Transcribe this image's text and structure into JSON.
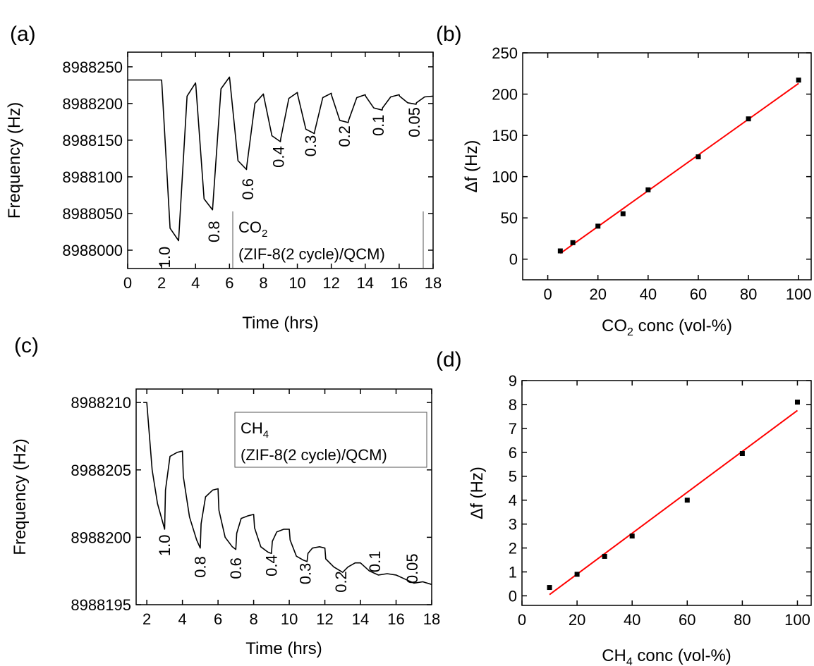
{
  "chart_data": [
    {
      "panel_label": "(a)",
      "type": "line",
      "xlabel": "Time (hrs)",
      "ylabel": "Frequency (Hz)",
      "xlim": [
        0,
        18
      ],
      "ylim": [
        8987975,
        8988270
      ],
      "xticks": [
        0,
        2,
        4,
        6,
        8,
        10,
        12,
        14,
        16,
        18
      ],
      "yticks": [
        8988000,
        8988050,
        8988100,
        8988150,
        8988200,
        8988250
      ],
      "legend": [
        "CO",
        "2",
        "(ZIF-8(2 cycle)/QCM)"
      ],
      "annotations": [
        {
          "text": "1.0",
          "x": 2.5,
          "y": 8988005
        },
        {
          "text": "0.8",
          "x": 5.4,
          "y": 8988040
        },
        {
          "text": "0.6",
          "x": 7.4,
          "y": 8988098
        },
        {
          "text": "0.4",
          "x": 9.2,
          "y": 8988142
        },
        {
          "text": "0.3",
          "x": 11.1,
          "y": 8988157
        },
        {
          "text": "0.2",
          "x": 13.1,
          "y": 8988170
        },
        {
          "text": "0.1",
          "x": 15.1,
          "y": 8988185
        },
        {
          "text": "0.05",
          "x": 17.2,
          "y": 8988195
        }
      ],
      "series": [
        {
          "x": [
            0,
            2,
            2.02,
            2.5,
            3,
            3.02,
            3.5,
            4,
            4.02,
            4.5,
            5,
            5.02,
            5.5,
            6,
            6.02,
            6.5,
            7,
            7.02,
            7.5,
            8,
            8.02,
            8.5,
            9,
            9.02,
            9.5,
            10,
            10.02,
            10.5,
            11,
            11.02,
            11.5,
            12,
            12.02,
            12.5,
            13,
            13.02,
            13.5,
            14,
            14.02,
            14.5,
            15,
            15.02,
            15.5,
            16,
            16.02,
            16.5,
            17,
            17.02,
            17.5,
            18
          ],
          "y": [
            8988232,
            8988232,
            8988225,
            8988030,
            8988013,
            8988020,
            8988210,
            8988228,
            8988224,
            8988070,
            8988055,
            8988062,
            8988220,
            8988236,
            8988232,
            8988122,
            8988110,
            8988115,
            8988200,
            8988213,
            8988210,
            8988156,
            8988148,
            8988152,
            8988207,
            8988215,
            8988212,
            8988165,
            8988159,
            8988162,
            8988208,
            8988214,
            8988211,
            8988177,
            8988174,
            8988177,
            8988208,
            8988212,
            8988210,
            8988194,
            8988191,
            8988194,
            8988209,
            8988212,
            8988210,
            8988201,
            8988199,
            8988201,
            8988209,
            8988210
          ]
        }
      ]
    },
    {
      "panel_label": "(b)",
      "type": "scatter",
      "xlabel": "CO conc (vol-%)",
      "xlabel_parts": [
        "CO",
        "2",
        " conc (vol-%)"
      ],
      "ylabel": "Δf (Hz)",
      "xlim": [
        -10,
        105
      ],
      "ylim": [
        -25,
        250
      ],
      "xticks": [
        0,
        20,
        40,
        60,
        80,
        100
      ],
      "yticks": [
        0,
        50,
        100,
        150,
        200,
        250
      ],
      "series": [
        {
          "x": [
            5,
            10,
            20,
            30,
            40,
            60,
            80,
            100
          ],
          "y": [
            10,
            20,
            40,
            55,
            84,
            124,
            170,
            217
          ]
        }
      ],
      "fit": {
        "x": [
          5,
          100
        ],
        "y": [
          7,
          213
        ]
      }
    },
    {
      "panel_label": "(c)",
      "type": "line",
      "xlabel": "Time (hrs)",
      "ylabel": "Frequency (Hz)",
      "xlim": [
        1.4,
        18
      ],
      "ylim": [
        8988195,
        8988211
      ],
      "xticks": [
        2,
        4,
        6,
        8,
        10,
        12,
        14,
        16,
        18
      ],
      "yticks": [
        8988195,
        8988200,
        8988205,
        8988210
      ],
      "legend": [
        "CH",
        "4",
        "(ZIF-8(2 cycle)/QCM)"
      ],
      "annotations": [
        {
          "text": "1.0",
          "x": 3.3,
          "y": 8988200.2
        },
        {
          "text": "0.8",
          "x": 5.3,
          "y": 8988198.6
        },
        {
          "text": "0.6",
          "x": 7.3,
          "y": 8988198.5
        },
        {
          "text": "0.4",
          "x": 9.3,
          "y": 8988198.7
        },
        {
          "text": "0.3",
          "x": 11.2,
          "y": 8988198.1
        },
        {
          "text": "0.2",
          "x": 13.2,
          "y": 8988197.5
        },
        {
          "text": "0.1",
          "x": 15.1,
          "y": 8988199
        },
        {
          "text": "0.05",
          "x": 17.2,
          "y": 8988198.8
        }
      ],
      "series": [
        {
          "x": [
            1.8,
            2,
            2.3,
            2.6,
            3,
            3.05,
            3.3,
            3.7,
            4,
            4.05,
            4.4,
            4.8,
            5,
            5.05,
            5.3,
            5.7,
            6,
            6.05,
            6.4,
            6.8,
            7,
            7.05,
            7.3,
            7.7,
            8,
            8.05,
            8.4,
            8.8,
            9,
            9.05,
            9.3,
            9.7,
            10,
            10.05,
            10.4,
            10.8,
            11,
            11.05,
            11.3,
            11.7,
            12,
            12.05,
            12.5,
            13,
            13.3,
            13.7,
            14,
            14.5,
            15,
            15.5,
            16,
            16.5,
            17,
            17.5,
            18
          ],
          "y": [
            8988210,
            8988210,
            8988205,
            8988202.5,
            8988200.6,
            8988203.5,
            8988206,
            8988206.3,
            8988206.4,
            8988204.5,
            8988201.5,
            8988199.8,
            8988199.2,
            8988201,
            8988203,
            8988203.5,
            8988203.6,
            8988202,
            8988200,
            8988199.3,
            8988199.1,
            8988200.3,
            8988201.4,
            8988201.6,
            8988201.7,
            8988200.7,
            8988199.3,
            8988198.9,
            8988198.8,
            8988199.7,
            8988200.4,
            8988200.6,
            8988200.6,
            8988199.8,
            8988198.6,
            8988198.3,
            8988198.2,
            8988198.8,
            8988199.2,
            8988199.3,
            8988199.2,
            8988198.4,
            8988197.8,
            8988197.4,
            8988197.8,
            8988198.1,
            8988198.1,
            8988197.5,
            8988197.2,
            8988197.3,
            8988197.2,
            8988196.9,
            8988196.6,
            8988196.7,
            8988196.5
          ]
        }
      ]
    },
    {
      "panel_label": "(d)",
      "type": "scatter",
      "xlabel": "CH conc (vol-%)",
      "xlabel_parts": [
        "CH",
        "4",
        " conc (vol-%)"
      ],
      "ylabel": "Δf (Hz)",
      "xlim": [
        0,
        105
      ],
      "ylim": [
        -0.4,
        9
      ],
      "xticks": [
        0,
        20,
        40,
        60,
        80,
        100
      ],
      "yticks": [
        0,
        1,
        2,
        3,
        4,
        5,
        6,
        7,
        8,
        9
      ],
      "series": [
        {
          "x": [
            10,
            20,
            30,
            40,
            60,
            80,
            100
          ],
          "y": [
            0.35,
            0.9,
            1.65,
            2.5,
            4,
            5.95,
            8.1
          ]
        }
      ],
      "fit": {
        "x": [
          10,
          100
        ],
        "y": [
          0.05,
          7.75
        ]
      }
    }
  ]
}
